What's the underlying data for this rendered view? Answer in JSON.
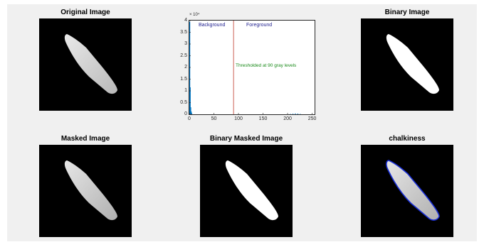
{
  "panels": {
    "original": "Original Image",
    "binary": "Binary Image",
    "masked": "Masked Image",
    "binary_masked": "Binary Masked Image",
    "chalkiness": "chalkiness"
  },
  "chart_data": {
    "type": "bar",
    "xlim": [
      0,
      255
    ],
    "ylim": [
      0,
      40000
    ],
    "x_ticks": [
      "0",
      "50",
      "100",
      "150",
      "200",
      "250"
    ],
    "y_ticks": [
      "0",
      "0.5",
      "1",
      "1.5",
      "2",
      "2.5",
      "3",
      "3.5",
      "4"
    ],
    "y_exponent": "× 10⁴",
    "threshold": 90,
    "labels": {
      "background": "Background",
      "foreground": "Foreground",
      "threshold": "Thresholded at 90 gray levels"
    },
    "bars": [
      {
        "x": 0,
        "y": 39500
      },
      {
        "x": 1,
        "y": 11500
      },
      {
        "x": 2,
        "y": 3000
      },
      {
        "x": 3,
        "y": 1200
      },
      {
        "x": 4,
        "y": 500
      },
      {
        "x": 205,
        "y": 150
      },
      {
        "x": 210,
        "y": 250
      },
      {
        "x": 215,
        "y": 350
      },
      {
        "x": 220,
        "y": 300
      },
      {
        "x": 225,
        "y": 150
      }
    ]
  },
  "colors": {
    "bar": "#0072BD",
    "threshold_line": "#c0392b",
    "label_blue": "#1f1f8f",
    "label_green": "#1a8a1a",
    "contour": "#1a2fd6"
  }
}
